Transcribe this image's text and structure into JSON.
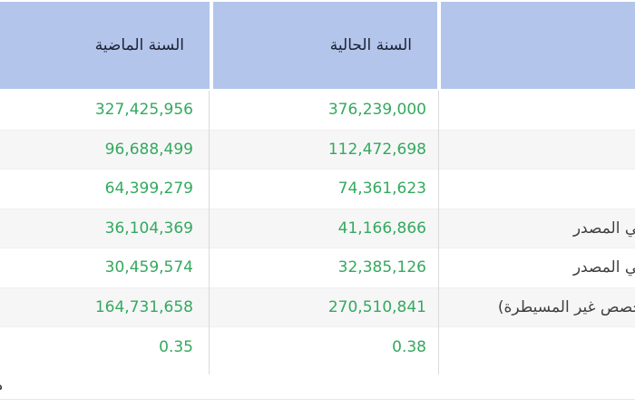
{
  "header": {
    "previous_year_label": "السنة الماضية",
    "current_year_label": "السنة الحالية",
    "item_column_label": ""
  },
  "rows": [
    {
      "label": "",
      "current": "376,239,000",
      "previous": "327,425,956"
    },
    {
      "label": "",
      "current": "112,472,698",
      "previous": "96,688,499"
    },
    {
      "label": "",
      "current": "74,361,623",
      "previous": "64,399,279"
    },
    {
      "label": "ـي المصدر",
      "current": "41,166,866",
      "previous": "36,104,369"
    },
    {
      "label": "ـي المصدر",
      "current": "32,385,126",
      "previous": "30,459,574"
    },
    {
      "label": "حصص غير المسيطرة)",
      "current": "270,510,841",
      "previous": "164,731,658"
    },
    {
      "label": "",
      "current": "0.38",
      "previous": "0.35"
    }
  ],
  "footer": {
    "clipped_char": "ه"
  },
  "colors": {
    "header_bg": "#b3c5eb",
    "header_text": "#1d2133",
    "value_green": "#34a95e",
    "label_text": "#3f3f3f",
    "stripe": "#f6f6f7",
    "vline": "#d9dade",
    "row_border": "#efeff1",
    "rule": "#e7e7e9"
  }
}
